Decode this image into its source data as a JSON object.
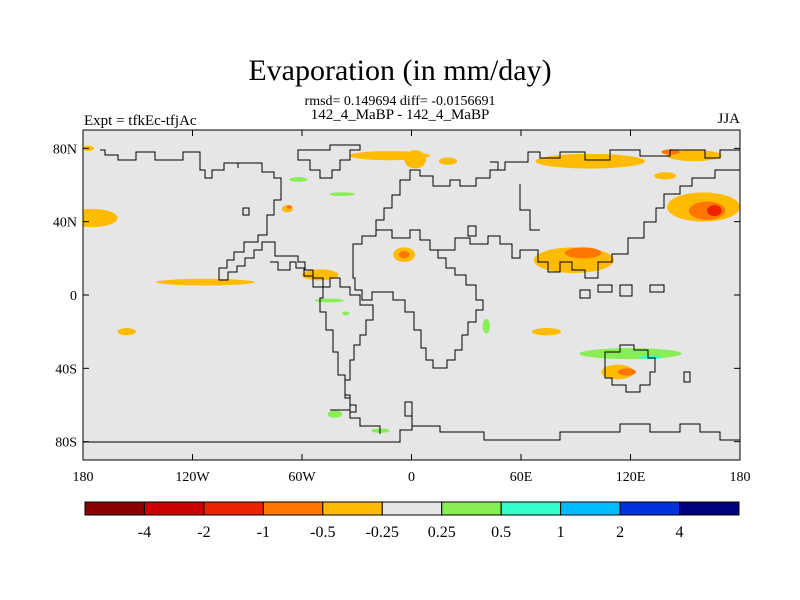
{
  "header": {
    "title": "Evaporation (in mm/day)",
    "stats": "rmsd= 0.149694 diff= -0.0156691",
    "center_label": "142_4_MaBP - 142_4_MaBP",
    "left_label": "Expt = tfkEc-tfjAc",
    "right_label": "JJA"
  },
  "chart_data": {
    "type": "heatmap",
    "title": "Evaporation (in mm/day)",
    "xlim": [
      -180,
      180
    ],
    "ylim": [
      -90,
      90
    ],
    "x_ticks": [
      {
        "value": -180,
        "label": "180"
      },
      {
        "value": -120,
        "label": "120W"
      },
      {
        "value": -60,
        "label": "60W"
      },
      {
        "value": 0,
        "label": "0"
      },
      {
        "value": 60,
        "label": "60E"
      },
      {
        "value": 120,
        "label": "120E"
      },
      {
        "value": 180,
        "label": "180"
      }
    ],
    "y_ticks": [
      {
        "value": 80,
        "label": "80N"
      },
      {
        "value": 40,
        "label": "40N"
      },
      {
        "value": 0,
        "label": "0"
      },
      {
        "value": -40,
        "label": "40S"
      },
      {
        "value": -80,
        "label": "80S"
      }
    ],
    "colorbar": {
      "boundaries": [
        "-4",
        "-2",
        "-1",
        "-0.5",
        "-0.25",
        "0.25",
        "0.5",
        "1",
        "2",
        "4"
      ],
      "colors": [
        "#8b0000",
        "#cc0000",
        "#ee2200",
        "#ff7700",
        "#ffbb00",
        "#e6e6e6",
        "#88ee55",
        "#33ffcc",
        "#00bbff",
        "#0033dd",
        "#00007a"
      ]
    },
    "background_color": "#e6e6e6",
    "anomaly_regions": [
      {
        "lon": -175,
        "lat": 42,
        "rx": 14,
        "ry": 5,
        "level": "#ffbb00"
      },
      {
        "lon": -113,
        "lat": 7,
        "rx": 27,
        "ry": 1.8,
        "level": "#ffbb00"
      },
      {
        "lon": -50,
        "lat": 11,
        "rx": 10,
        "ry": 3,
        "level": "#ffbb00"
      },
      {
        "lon": -68,
        "lat": 47,
        "rx": 3,
        "ry": 2,
        "level": "#ffbb00"
      },
      {
        "lon": -156,
        "lat": -20,
        "rx": 5,
        "ry": 2,
        "level": "#ffbb00"
      },
      {
        "lon": -177,
        "lat": 80,
        "rx": 3,
        "ry": 1.5,
        "level": "#ffbb00"
      },
      {
        "lon": -12,
        "lat": 76,
        "rx": 22,
        "ry": 2.5,
        "level": "#ffbb00"
      },
      {
        "lon": 2,
        "lat": 74,
        "rx": 6,
        "ry": 5,
        "level": "#ffbb00"
      },
      {
        "lon": -4,
        "lat": 22,
        "rx": 6,
        "ry": 4,
        "level": "#ffbb00"
      },
      {
        "lon": 20,
        "lat": 73,
        "rx": 5,
        "ry": 2,
        "level": "#ffbb00"
      },
      {
        "lon": 89,
        "lat": 19,
        "rx": 22,
        "ry": 7,
        "level": "#ffbb00"
      },
      {
        "lon": 98,
        "lat": 73,
        "rx": 30,
        "ry": 4,
        "level": "#ffbb00"
      },
      {
        "lon": 155,
        "lat": 76,
        "rx": 15,
        "ry": 3,
        "level": "#ffbb00"
      },
      {
        "lon": 160,
        "lat": 48,
        "rx": 20,
        "ry": 8,
        "level": "#ffbb00"
      },
      {
        "lon": 139,
        "lat": 65,
        "rx": 6,
        "ry": 2,
        "level": "#ffbb00"
      },
      {
        "lon": 113,
        "lat": -42,
        "rx": 9,
        "ry": 4,
        "level": "#ffbb00"
      },
      {
        "lon": 74,
        "lat": -20,
        "rx": 8,
        "ry": 2,
        "level": "#ffbb00"
      },
      {
        "lon": 142,
        "lat": 78,
        "rx": 5,
        "ry": 1.5,
        "level": "#ff7700"
      },
      {
        "lon": 94,
        "lat": 23,
        "rx": 10,
        "ry": 3,
        "level": "#ff7700"
      },
      {
        "lon": 162,
        "lat": 46,
        "rx": 10,
        "ry": 5,
        "level": "#ff7700"
      },
      {
        "lon": 118,
        "lat": -42,
        "rx": 5,
        "ry": 2,
        "level": "#ff7700"
      },
      {
        "lon": -4,
        "lat": 22,
        "rx": 3,
        "ry": 2,
        "level": "#ff7700"
      },
      {
        "lon": -67,
        "lat": 48,
        "rx": 1.5,
        "ry": 1,
        "level": "#ff7700"
      },
      {
        "lon": 166,
        "lat": 46,
        "rx": 4,
        "ry": 3,
        "level": "#ee2200"
      },
      {
        "lon": -62,
        "lat": 63,
        "rx": 5,
        "ry": 1.3,
        "level": "#88ee55"
      },
      {
        "lon": -38,
        "lat": 55,
        "rx": 7,
        "ry": 1,
        "level": "#88ee55"
      },
      {
        "lon": -45,
        "lat": -3,
        "rx": 8,
        "ry": 1,
        "level": "#88ee55"
      },
      {
        "lon": -36,
        "lat": -10,
        "rx": 2,
        "ry": 1,
        "level": "#88ee55"
      },
      {
        "lon": -42,
        "lat": -65,
        "rx": 4,
        "ry": 2,
        "level": "#88ee55"
      },
      {
        "lon": -17,
        "lat": -74,
        "rx": 5,
        "ry": 1.2,
        "level": "#88ee55"
      },
      {
        "lon": 41,
        "lat": -17,
        "rx": 2,
        "ry": 4,
        "level": "#88ee55"
      },
      {
        "lon": 120,
        "lat": -32,
        "rx": 28,
        "ry": 3,
        "level": "#88ee55"
      },
      {
        "lon": 131,
        "lat": -34,
        "rx": 6,
        "ry": 1,
        "level": "#33ffcc"
      }
    ]
  }
}
